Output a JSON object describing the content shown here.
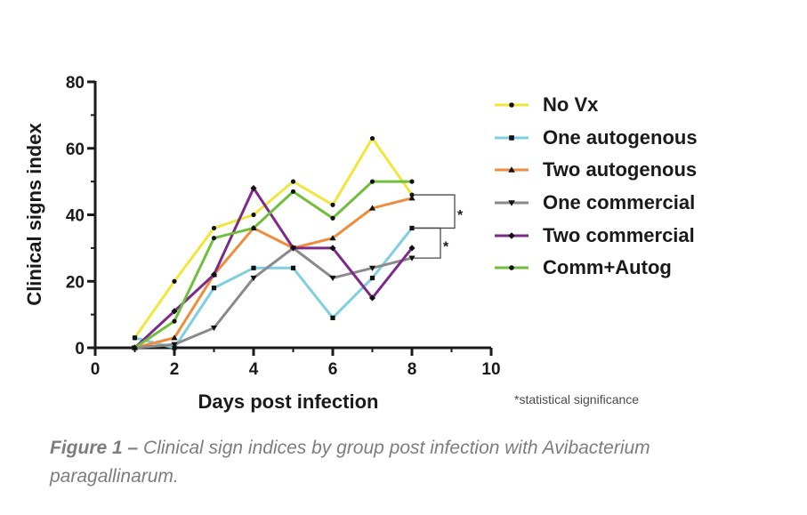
{
  "chart_data": {
    "type": "line",
    "xlabel": "Days post infection",
    "ylabel": "Clinical signs index",
    "xlim": [
      0,
      10
    ],
    "ylim": [
      0,
      80
    ],
    "xticks": [
      "0",
      "2",
      "4",
      "6",
      "8",
      "10"
    ],
    "yticks": [
      "0",
      "20",
      "40",
      "60",
      "80"
    ],
    "grid": false,
    "legend_position": "right",
    "x": [
      1,
      2,
      3,
      4,
      5,
      6,
      7,
      8
    ],
    "series": [
      {
        "name": "No Vx",
        "color": "#f2e63a",
        "marker": "circle",
        "values": [
          3,
          20,
          36,
          40,
          50,
          43,
          63,
          46
        ]
      },
      {
        "name": "One autogenous",
        "color": "#7ecfe0",
        "marker": "square",
        "values": [
          3,
          0,
          18,
          24,
          24,
          9,
          21,
          36
        ]
      },
      {
        "name": "Two autogenous",
        "color": "#f08c3c",
        "marker": "triangle-up",
        "values": [
          0,
          3,
          22,
          36,
          30,
          33,
          42,
          45
        ]
      },
      {
        "name": "One commercial",
        "color": "#8a8a8a",
        "marker": "triangle-down",
        "values": [
          0,
          1,
          6,
          21,
          30,
          21,
          24,
          27
        ]
      },
      {
        "name": "Two commercial",
        "color": "#7b2a88",
        "marker": "diamond",
        "values": [
          0,
          11,
          22,
          48,
          30,
          30,
          15,
          30
        ]
      },
      {
        "name": "Comm+Autog",
        "color": "#6fbf3a",
        "marker": "circle",
        "values": [
          0,
          8,
          33,
          36,
          47,
          39,
          50,
          50
        ]
      }
    ],
    "significance_brackets": [
      {
        "between": [
          "No Vx",
          "One autogenous"
        ],
        "label": "*",
        "upper": 46,
        "lower": 36
      },
      {
        "between": [
          "One autogenous",
          "One commercial"
        ],
        "label": "*",
        "upper": 36,
        "lower": 27
      }
    ],
    "footnote": "*statistical significance"
  },
  "caption": {
    "figure_label": "Figure 1 –",
    "text": " Clinical sign indices by group post infection with Avibacterium paragallinarum."
  }
}
